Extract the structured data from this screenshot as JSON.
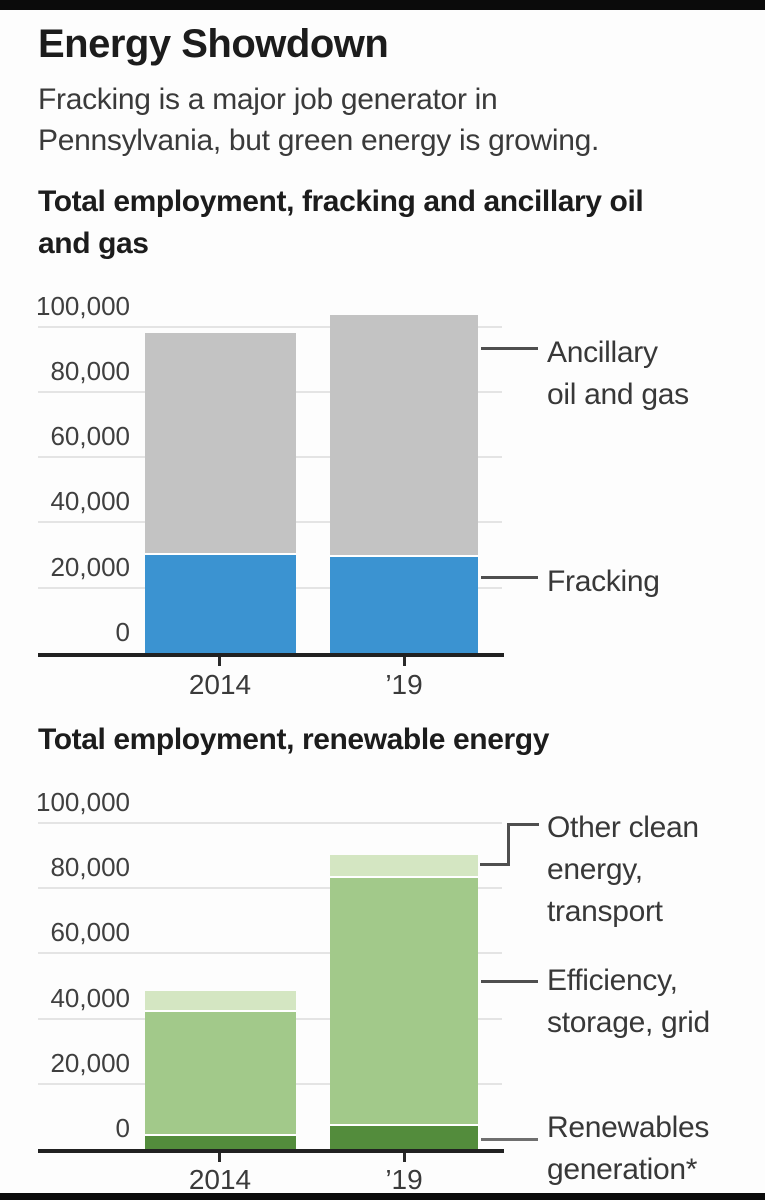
{
  "page": {
    "title": "Energy Showdown",
    "subtitle_lines": [
      "Fracking is a major job generator in",
      "Pennsylvania, but green energy is growing."
    ]
  },
  "chart_data": [
    {
      "type": "bar",
      "stacked": true,
      "title": "Total employment, fracking and ancillary oil and gas",
      "title_lines": [
        "Total employment, fracking and ancillary oil",
        "and gas"
      ],
      "categories": [
        "2014",
        "’19"
      ],
      "xlabel": "",
      "ylabel": "",
      "ylim": [
        0,
        100000
      ],
      "grid": true,
      "legend_position": "right",
      "yticks": [
        {
          "value": 100000,
          "label": "100,000"
        },
        {
          "value": 80000,
          "label": "80,000"
        },
        {
          "value": 60000,
          "label": "60,000"
        },
        {
          "value": 40000,
          "label": "40,000"
        },
        {
          "value": 20000,
          "label": "20,000"
        },
        {
          "value": 0,
          "label": "0"
        }
      ],
      "series": [
        {
          "name": "Fracking",
          "color": "#3b93d1",
          "values": [
            30000,
            29500
          ],
          "legend_lines": [
            "Fracking"
          ]
        },
        {
          "name": "Ancillary oil and gas",
          "color": "#c3c3c3",
          "values": [
            68000,
            74000
          ],
          "legend_lines": [
            "Ancillary",
            "oil and gas"
          ]
        }
      ]
    },
    {
      "type": "bar",
      "stacked": true,
      "title": "Total employment, renewable energy",
      "title_lines": [
        "Total employment, renewable energy"
      ],
      "categories": [
        "2014",
        "’19"
      ],
      "xlabel": "",
      "ylabel": "",
      "ylim": [
        0,
        100000
      ],
      "grid": true,
      "legend_position": "right",
      "yticks": [
        {
          "value": 100000,
          "label": "100,000"
        },
        {
          "value": 80000,
          "label": "80,000"
        },
        {
          "value": 60000,
          "label": "60,000"
        },
        {
          "value": 40000,
          "label": "40,000"
        },
        {
          "value": 20000,
          "label": "20,000"
        },
        {
          "value": 0,
          "label": "0"
        }
      ],
      "series": [
        {
          "name": "Renewables generation*",
          "color": "#538c3c",
          "values": [
            4000,
            7000
          ],
          "legend_lines": [
            "Renewables",
            "generation*"
          ]
        },
        {
          "name": "Efficiency, storage, grid",
          "color": "#a2c98a",
          "values": [
            38000,
            76000
          ],
          "legend_lines": [
            "Efficiency,",
            "storage, grid"
          ]
        },
        {
          "name": "Other clean energy, transport",
          "color": "#d4e6c2",
          "values": [
            6500,
            7000
          ],
          "legend_lines": [
            "Other clean",
            "energy,",
            "transport"
          ]
        }
      ]
    }
  ]
}
